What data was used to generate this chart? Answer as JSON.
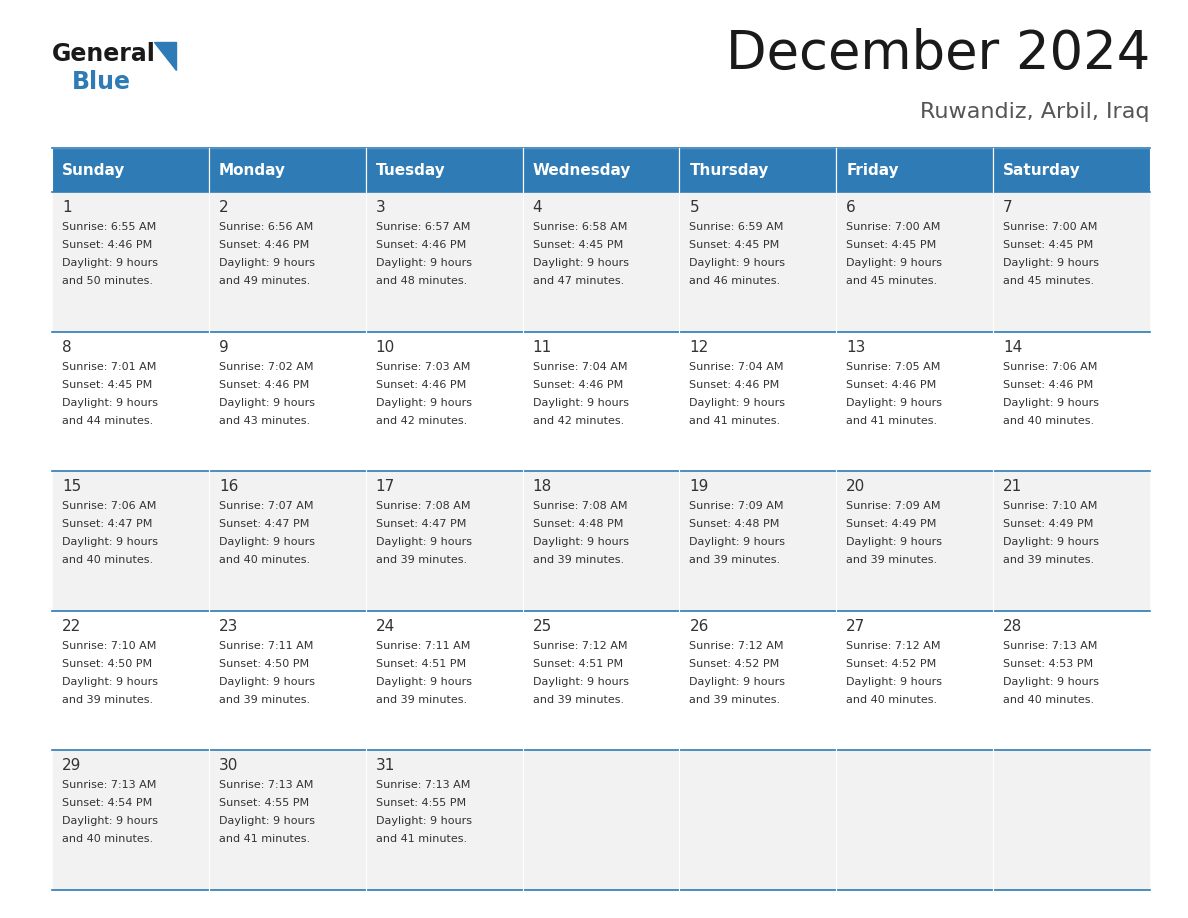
{
  "title": "December 2024",
  "subtitle": "Ruwandiz, Arbil, Iraq",
  "header_bg": "#2E7BB5",
  "header_text": "#FFFFFF",
  "row_bg_odd": "#F2F2F2",
  "row_bg_even": "#FFFFFF",
  "border_color": "#2E7BB5",
  "text_color": "#333333",
  "days_of_week": [
    "Sunday",
    "Monday",
    "Tuesday",
    "Wednesday",
    "Thursday",
    "Friday",
    "Saturday"
  ],
  "calendar_data": [
    [
      {
        "day": 1,
        "sunrise": "6:55 AM",
        "sunset": "4:46 PM",
        "daylight": "9 hours\nand 50 minutes."
      },
      {
        "day": 2,
        "sunrise": "6:56 AM",
        "sunset": "4:46 PM",
        "daylight": "9 hours\nand 49 minutes."
      },
      {
        "day": 3,
        "sunrise": "6:57 AM",
        "sunset": "4:46 PM",
        "daylight": "9 hours\nand 48 minutes."
      },
      {
        "day": 4,
        "sunrise": "6:58 AM",
        "sunset": "4:45 PM",
        "daylight": "9 hours\nand 47 minutes."
      },
      {
        "day": 5,
        "sunrise": "6:59 AM",
        "sunset": "4:45 PM",
        "daylight": "9 hours\nand 46 minutes."
      },
      {
        "day": 6,
        "sunrise": "7:00 AM",
        "sunset": "4:45 PM",
        "daylight": "9 hours\nand 45 minutes."
      },
      {
        "day": 7,
        "sunrise": "7:00 AM",
        "sunset": "4:45 PM",
        "daylight": "9 hours\nand 45 minutes."
      }
    ],
    [
      {
        "day": 8,
        "sunrise": "7:01 AM",
        "sunset": "4:45 PM",
        "daylight": "9 hours\nand 44 minutes."
      },
      {
        "day": 9,
        "sunrise": "7:02 AM",
        "sunset": "4:46 PM",
        "daylight": "9 hours\nand 43 minutes."
      },
      {
        "day": 10,
        "sunrise": "7:03 AM",
        "sunset": "4:46 PM",
        "daylight": "9 hours\nand 42 minutes."
      },
      {
        "day": 11,
        "sunrise": "7:04 AM",
        "sunset": "4:46 PM",
        "daylight": "9 hours\nand 42 minutes."
      },
      {
        "day": 12,
        "sunrise": "7:04 AM",
        "sunset": "4:46 PM",
        "daylight": "9 hours\nand 41 minutes."
      },
      {
        "day": 13,
        "sunrise": "7:05 AM",
        "sunset": "4:46 PM",
        "daylight": "9 hours\nand 41 minutes."
      },
      {
        "day": 14,
        "sunrise": "7:06 AM",
        "sunset": "4:46 PM",
        "daylight": "9 hours\nand 40 minutes."
      }
    ],
    [
      {
        "day": 15,
        "sunrise": "7:06 AM",
        "sunset": "4:47 PM",
        "daylight": "9 hours\nand 40 minutes."
      },
      {
        "day": 16,
        "sunrise": "7:07 AM",
        "sunset": "4:47 PM",
        "daylight": "9 hours\nand 40 minutes."
      },
      {
        "day": 17,
        "sunrise": "7:08 AM",
        "sunset": "4:47 PM",
        "daylight": "9 hours\nand 39 minutes."
      },
      {
        "day": 18,
        "sunrise": "7:08 AM",
        "sunset": "4:48 PM",
        "daylight": "9 hours\nand 39 minutes."
      },
      {
        "day": 19,
        "sunrise": "7:09 AM",
        "sunset": "4:48 PM",
        "daylight": "9 hours\nand 39 minutes."
      },
      {
        "day": 20,
        "sunrise": "7:09 AM",
        "sunset": "4:49 PM",
        "daylight": "9 hours\nand 39 minutes."
      },
      {
        "day": 21,
        "sunrise": "7:10 AM",
        "sunset": "4:49 PM",
        "daylight": "9 hours\nand 39 minutes."
      }
    ],
    [
      {
        "day": 22,
        "sunrise": "7:10 AM",
        "sunset": "4:50 PM",
        "daylight": "9 hours\nand 39 minutes."
      },
      {
        "day": 23,
        "sunrise": "7:11 AM",
        "sunset": "4:50 PM",
        "daylight": "9 hours\nand 39 minutes."
      },
      {
        "day": 24,
        "sunrise": "7:11 AM",
        "sunset": "4:51 PM",
        "daylight": "9 hours\nand 39 minutes."
      },
      {
        "day": 25,
        "sunrise": "7:12 AM",
        "sunset": "4:51 PM",
        "daylight": "9 hours\nand 39 minutes."
      },
      {
        "day": 26,
        "sunrise": "7:12 AM",
        "sunset": "4:52 PM",
        "daylight": "9 hours\nand 39 minutes."
      },
      {
        "day": 27,
        "sunrise": "7:12 AM",
        "sunset": "4:52 PM",
        "daylight": "9 hours\nand 40 minutes."
      },
      {
        "day": 28,
        "sunrise": "7:13 AM",
        "sunset": "4:53 PM",
        "daylight": "9 hours\nand 40 minutes."
      }
    ],
    [
      {
        "day": 29,
        "sunrise": "7:13 AM",
        "sunset": "4:54 PM",
        "daylight": "9 hours\nand 40 minutes."
      },
      {
        "day": 30,
        "sunrise": "7:13 AM",
        "sunset": "4:55 PM",
        "daylight": "9 hours\nand 41 minutes."
      },
      {
        "day": 31,
        "sunrise": "7:13 AM",
        "sunset": "4:55 PM",
        "daylight": "9 hours\nand 41 minutes."
      },
      null,
      null,
      null,
      null
    ]
  ],
  "fig_width": 11.88,
  "fig_height": 9.18,
  "dpi": 100
}
